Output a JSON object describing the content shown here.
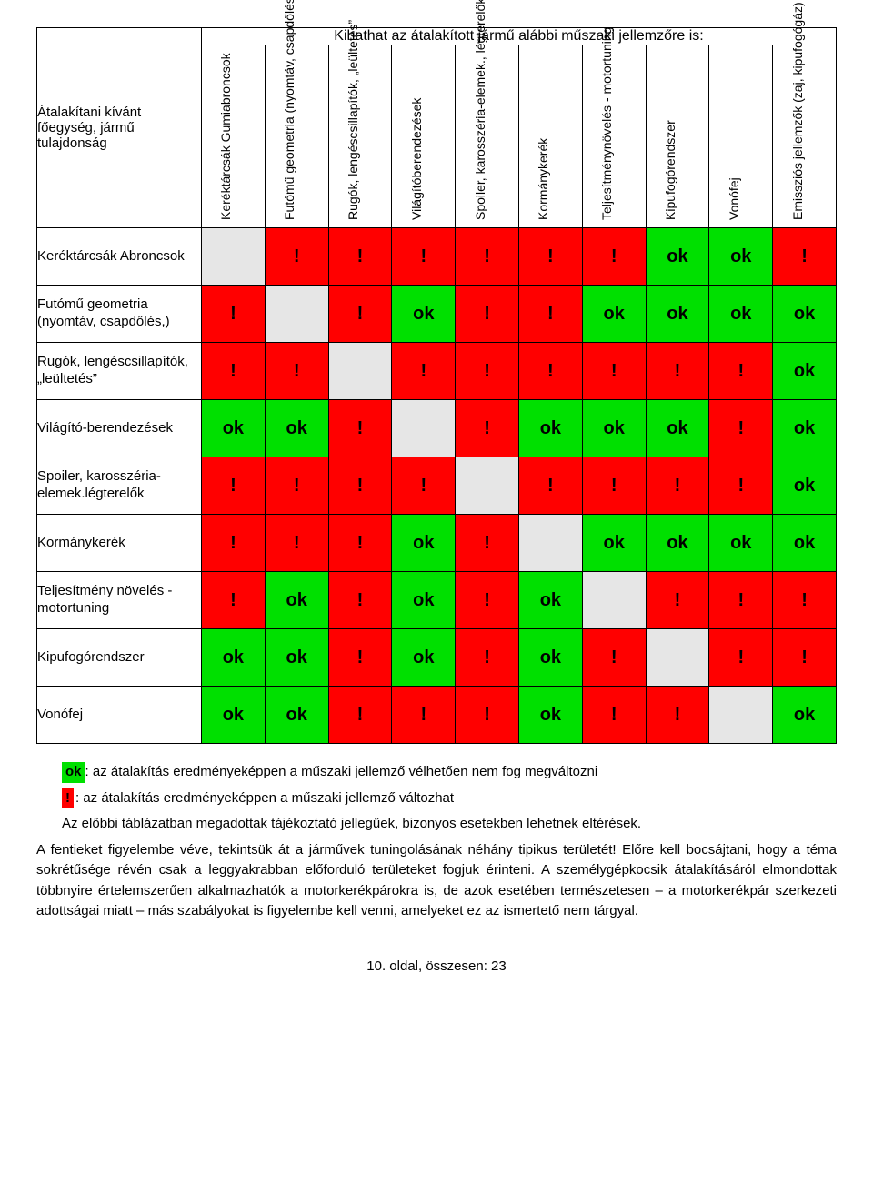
{
  "header": {
    "span_title": "Kihathat az átalakított jármű alábbi műszaki jellemzőre is:",
    "corner_label": "Átalakítani kívánt főegység, jármű tulajdonság"
  },
  "columns": [
    "Keréktárcsák Gumiabroncsok",
    "Futómű geometria (nyomtáv, csapdőlés,)",
    "Rugók, lengéscsillapítók, „leültetés”",
    "Világítóberendezések",
    "Spoiler, karosszéria-elemek., légterelők",
    "Kormánykerék",
    "Teljesítménynövelés - motortuning",
    "Kipufogórendszer",
    "Vonófej",
    "Emissziós jellemzők (zaj, kipufogógáz)"
  ],
  "rows": [
    {
      "label": "Keréktárcsák Abroncsok",
      "cells": [
        "diag",
        "!",
        "!",
        "!",
        "!",
        "!",
        "!",
        "ok",
        "ok",
        "!"
      ]
    },
    {
      "label": "Futómű geometria (nyomtáv, csapdőlés,)",
      "cells": [
        "!",
        "diag",
        "!",
        "ok",
        "!",
        "!",
        "ok",
        "ok",
        "ok",
        "ok"
      ]
    },
    {
      "label": "Rugók, lengéscsillapítók, „leültetés”",
      "cells": [
        "!",
        "!",
        "diag",
        "!",
        "!",
        "!",
        "!",
        "!",
        "!",
        "ok"
      ]
    },
    {
      "label": "Világító-berendezések",
      "cells": [
        "ok",
        "ok",
        "!",
        "diag",
        "!",
        "ok",
        "ok",
        "ok",
        "!",
        "ok"
      ]
    },
    {
      "label": "Spoiler, karosszéria-elemek.légterelők",
      "cells": [
        "!",
        "!",
        "!",
        "!",
        "diag",
        "!",
        "!",
        "!",
        "!",
        "ok"
      ]
    },
    {
      "label": "Kormánykerék",
      "cells": [
        "!",
        "!",
        "!",
        "ok",
        "!",
        "diag",
        "ok",
        "ok",
        "ok",
        "ok"
      ]
    },
    {
      "label": "Teljesítmény növelés - motortuning",
      "cells": [
        "!",
        "ok",
        "!",
        "ok",
        "!",
        "ok",
        "diag",
        "!",
        "!",
        "!"
      ]
    },
    {
      "label": "Kipufogórendszer",
      "cells": [
        "ok",
        "ok",
        "!",
        "ok",
        "!",
        "ok",
        "!",
        "diag",
        "!",
        "!"
      ]
    },
    {
      "label": "Vonófej",
      "cells": [
        "ok",
        "ok",
        "!",
        "!",
        "!",
        "ok",
        "!",
        "!",
        "diag",
        "ok"
      ]
    }
  ],
  "cell_styles": {
    "ok": {
      "bg": "#00e000",
      "text": "ok",
      "class": "c-ok"
    },
    "!": {
      "bg": "#ff0000",
      "text": "!",
      "class": "c-warn"
    },
    "diag": {
      "bg": "#e6e6e6",
      "text": "",
      "class": "c-diag"
    },
    "blank": {
      "bg": "#ffffff",
      "text": "",
      "class": "c-blank"
    }
  },
  "legend": {
    "ok_chip": "ok",
    "ok_text": ": az átalakítás eredményeképpen a műszaki jellemző vélhetően nem fog megváltozni",
    "warn_chip": "!",
    "warn_text": ": az átalakítás eredményeképpen a műszaki jellemző változhat",
    "note1": "Az előbbi táblázatban megadottak tájékoztató jellegűek, bizonyos esetekben lehetnek eltérések.",
    "note2": "A fentieket figyelembe véve, tekintsük át a járművek tuningolásának néhány tipikus területét! Előre kell bocsájtani, hogy a téma sokrétűsége révén csak a leggyakrabban előforduló területeket fogjuk érinteni. A személygépkocsik átalakításáról elmondottak többnyire értelemszerűen alkalmazhatók a motorkerékpárokra is, de azok esetében természetesen – a motorkerékpár szerkezeti adottságai miatt  – más szabályokat is figyelembe kell venni, amelyeket ez az ismertető nem tárgyal."
  },
  "footer": "10. oldal, összesen: 23"
}
